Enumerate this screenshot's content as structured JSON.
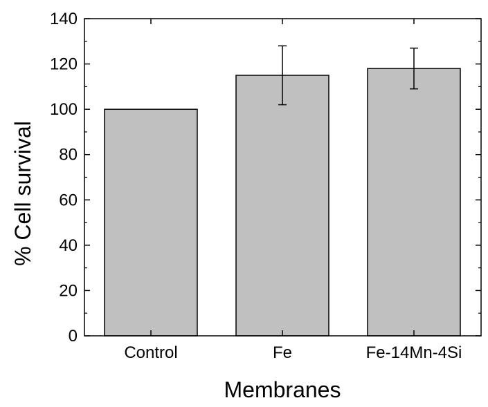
{
  "chart_data": {
    "type": "bar",
    "xlabel": "Membranes",
    "ylabel": "% Cell survival",
    "ylim": [
      0,
      140
    ],
    "yticks": [
      0,
      20,
      40,
      60,
      80,
      100,
      120,
      140
    ],
    "categories": [
      "Control",
      "Fe",
      "Fe-14Mn-4Si"
    ],
    "values": [
      100,
      115,
      118
    ],
    "error": [
      0,
      13,
      9
    ],
    "grid": false,
    "legend": "none",
    "colors": {
      "bar_fill": "#c0c0c0",
      "bar_stroke": "#000000",
      "axis": "#000000"
    }
  }
}
